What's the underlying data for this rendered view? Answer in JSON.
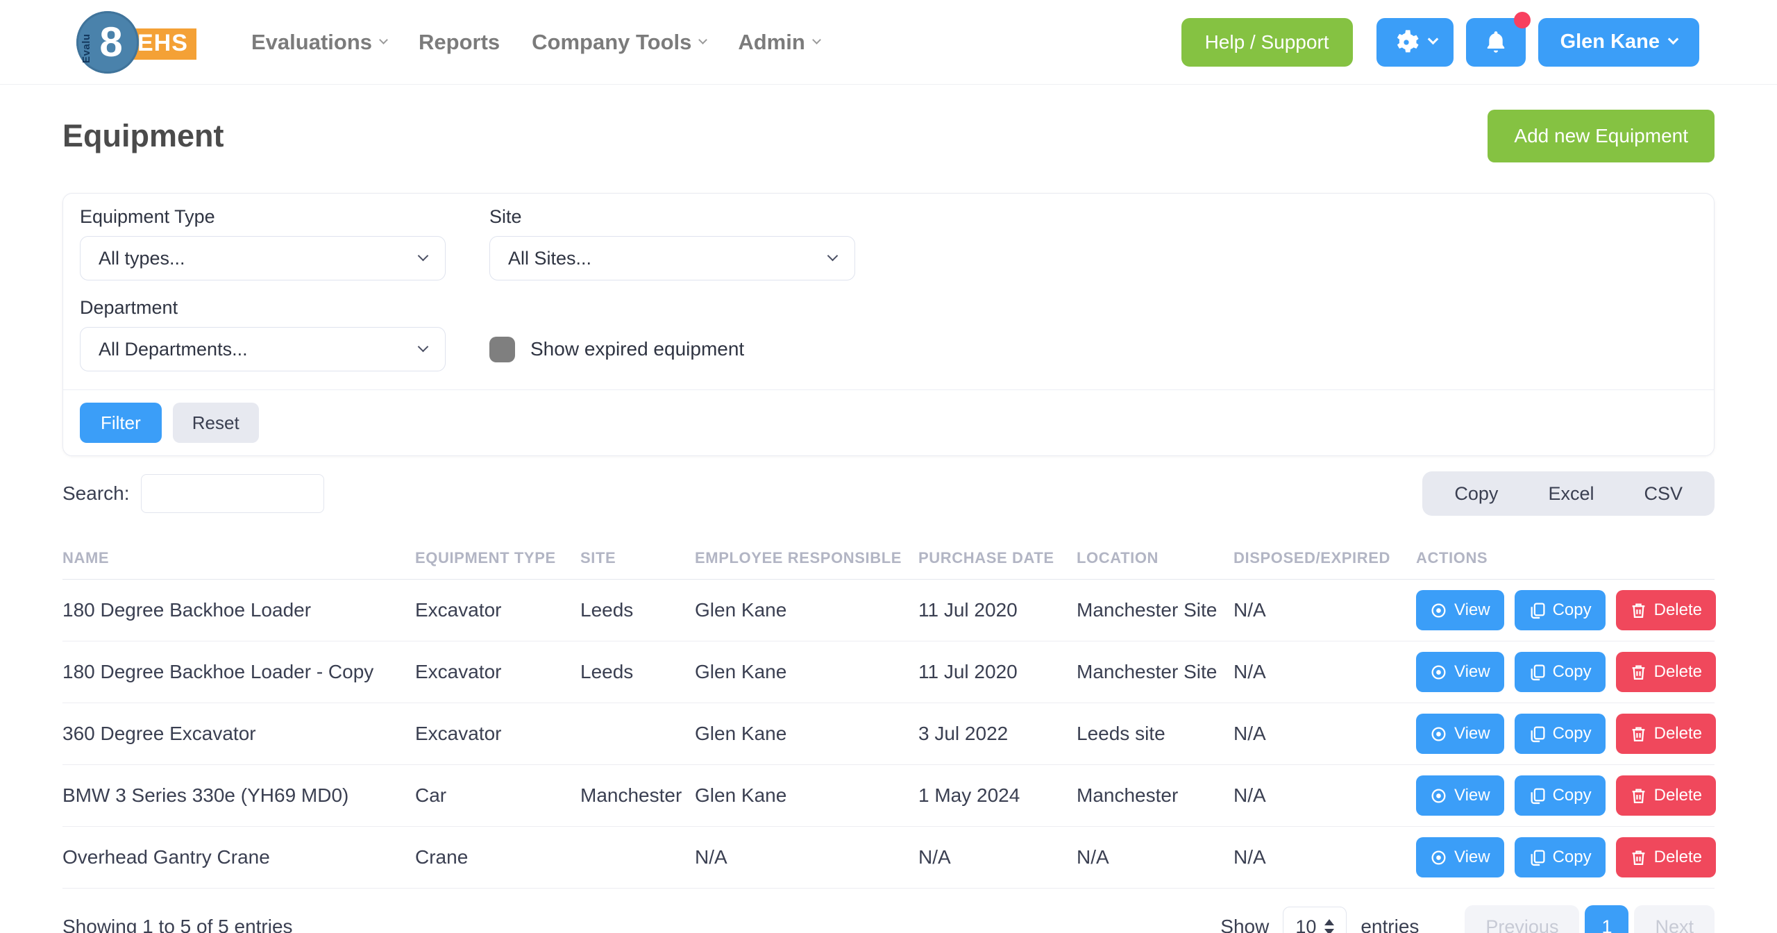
{
  "brand": {
    "name_vertical": "Evalu",
    "number": "8",
    "suffix": "EHS"
  },
  "nav": {
    "items": [
      {
        "label": "Evaluations",
        "dropdown": true
      },
      {
        "label": "Reports",
        "dropdown": false
      },
      {
        "label": "Company Tools",
        "dropdown": true
      },
      {
        "label": "Admin",
        "dropdown": true
      }
    ],
    "help_label": "Help / Support",
    "user_label": "Glen Kane"
  },
  "page": {
    "title": "Equipment",
    "add_button_label": "Add new Equipment"
  },
  "filters": {
    "equipment_type": {
      "label": "Equipment Type",
      "value": "All types..."
    },
    "site": {
      "label": "Site",
      "value": "All Sites..."
    },
    "department": {
      "label": "Department",
      "value": "All Departments..."
    },
    "show_expired_label": "Show expired equipment",
    "show_expired_checked": false,
    "filter_button": "Filter",
    "reset_button": "Reset"
  },
  "toolbar": {
    "search_label": "Search:",
    "search_value": "",
    "export_buttons": [
      "Copy",
      "Excel",
      "CSV"
    ]
  },
  "table": {
    "columns": [
      "NAME",
      "EQUIPMENT TYPE",
      "SITE",
      "EMPLOYEE RESPONSIBLE",
      "PURCHASE DATE",
      "LOCATION",
      "DISPOSED/EXPIRED",
      "ACTIONS"
    ],
    "rows": [
      {
        "name": "180 Degree Backhoe Loader",
        "type": "Excavator",
        "site": "Leeds",
        "employee": "Glen Kane",
        "purchase_date": "11 Jul 2020",
        "location": "Manchester Site",
        "disposed": "N/A"
      },
      {
        "name": "180 Degree Backhoe Loader - Copy",
        "type": "Excavator",
        "site": "Leeds",
        "employee": "Glen Kane",
        "purchase_date": "11 Jul 2020",
        "location": "Manchester Site",
        "disposed": "N/A"
      },
      {
        "name": "360 Degree Excavator",
        "type": "Excavator",
        "site": "",
        "employee": "Glen Kane",
        "purchase_date": "3 Jul 2022",
        "location": "Leeds site",
        "disposed": "N/A"
      },
      {
        "name": "BMW 3 Series 330e (YH69 MD0)",
        "type": "Car",
        "site": "Manchester",
        "employee": "Glen Kane",
        "purchase_date": "1 May 2024",
        "location": "Manchester",
        "disposed": "N/A"
      },
      {
        "name": "Overhead Gantry Crane",
        "type": "Crane",
        "site": "",
        "employee": "N/A",
        "purchase_date": "N/A",
        "location": "N/A",
        "disposed": "N/A"
      }
    ],
    "actions": [
      "View",
      "Copy",
      "Delete"
    ]
  },
  "footer": {
    "showing_text": "Showing 1 to 5 of 5 entries",
    "show_label": "Show",
    "page_size": "10",
    "entries_label": "entries",
    "previous_label": "Previous",
    "current_page": "1",
    "next_label": "Next"
  },
  "colors": {
    "accent_blue": "#3b9ef8",
    "accent_green": "#85c242",
    "accent_red": "#f0485c",
    "notification_dot": "#f8405f",
    "logo_circle": "#4a82ab",
    "logo_badge": "#f4a136"
  }
}
